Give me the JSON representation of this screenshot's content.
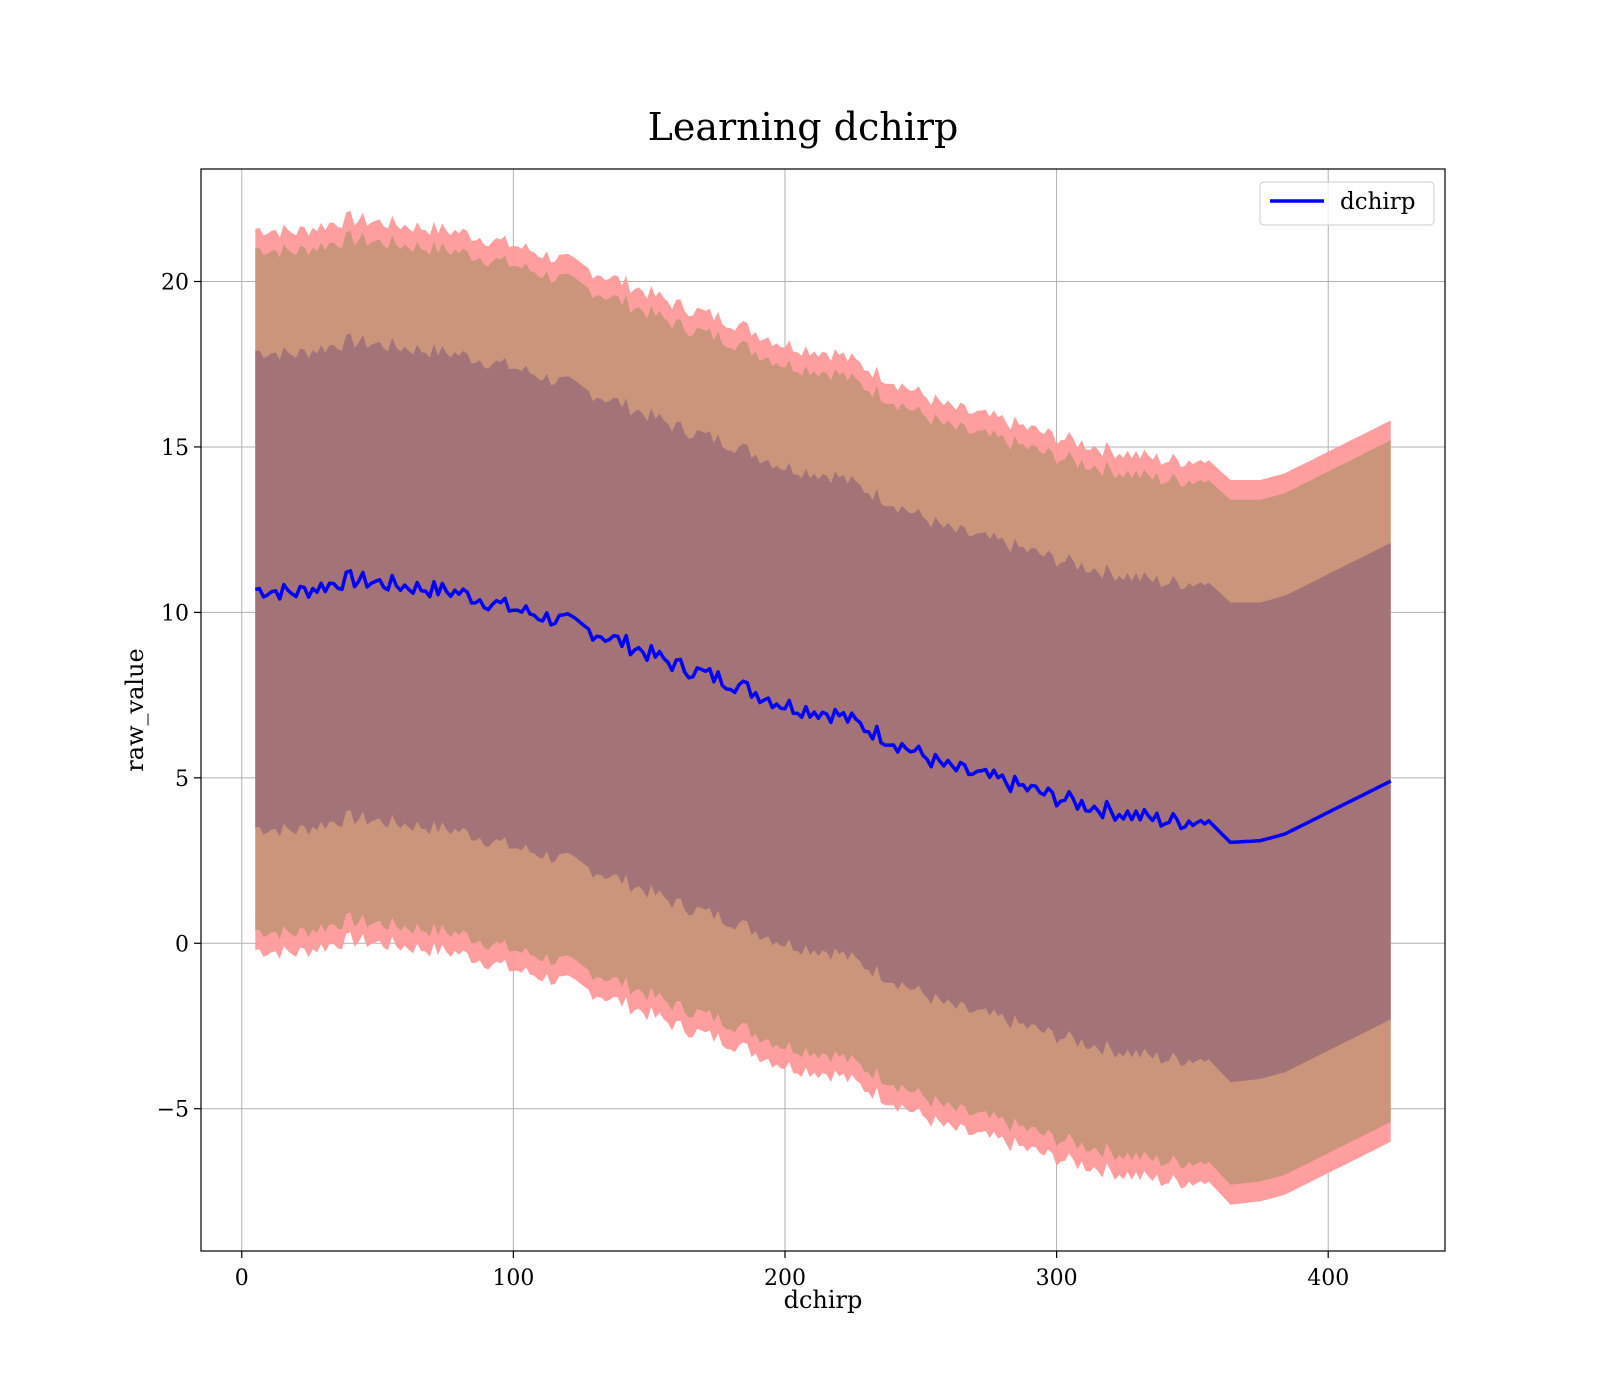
{
  "chart_data": {
    "type": "line",
    "title": "Learning dchirp",
    "xlabel": "dchirp",
    "ylabel": "raw_value",
    "xlim": [
      -15,
      443
    ],
    "ylim": [
      -9.3,
      23.4
    ],
    "xticks": [
      0,
      100,
      200,
      300,
      400
    ],
    "yticks": [
      -5,
      0,
      5,
      10,
      15,
      20
    ],
    "xtick_labels": [
      "0",
      "100",
      "200",
      "300",
      "400"
    ],
    "ytick_labels": [
      "−5",
      "0",
      "5",
      "10",
      "15",
      "20"
    ],
    "grid": true,
    "legend": {
      "position": "top-right",
      "entries": [
        "dchirp"
      ]
    },
    "colors": {
      "line": "#0000ff",
      "band3": "#ff9999",
      "band2": "#c79579",
      "band1": "#a07178",
      "grid": "#b0b0b0"
    },
    "series": [
      {
        "name": "dchirp",
        "x": [
          5,
          20,
          40,
          60,
          80,
          100,
          120,
          140,
          160,
          180,
          200,
          220,
          240,
          260,
          280,
          300,
          320,
          340,
          356,
          364,
          375,
          384,
          423
        ],
        "y": [
          10.7,
          10.6,
          11.0,
          10.8,
          10.6,
          10.1,
          9.7,
          9.1,
          8.4,
          7.9,
          7.2,
          6.9,
          6.1,
          5.3,
          4.9,
          4.4,
          4.0,
          3.7,
          3.7,
          3.05,
          3.1,
          3.3,
          4.9
        ],
        "bands": [
          {
            "level": 1,
            "upper": [
              17.9,
              17.8,
              18.2,
              18.0,
              17.8,
              17.4,
              16.9,
              16.3,
              15.6,
              15.1,
              14.4,
              14.1,
              13.3,
              12.5,
              12.1,
              11.6,
              11.2,
              10.9,
              10.9,
              10.3,
              10.3,
              10.5,
              12.1
            ],
            "lower": [
              3.5,
              3.4,
              3.8,
              3.6,
              3.4,
              2.9,
              2.5,
              1.9,
              1.2,
              0.7,
              0.0,
              -0.3,
              -1.1,
              -1.9,
              -2.3,
              -2.8,
              -3.2,
              -3.5,
              -3.5,
              -4.2,
              -4.1,
              -3.9,
              -2.3
            ]
          },
          {
            "level": 2,
            "upper": [
              21.0,
              20.9,
              21.3,
              21.1,
              20.9,
              20.5,
              20.0,
              19.4,
              18.7,
              18.2,
              17.5,
              17.2,
              16.4,
              15.6,
              15.2,
              14.7,
              14.3,
              14.0,
              14.0,
              13.4,
              13.4,
              13.6,
              15.2
            ],
            "lower": [
              0.4,
              0.3,
              0.7,
              0.5,
              0.3,
              -0.2,
              -0.6,
              -1.2,
              -1.9,
              -2.4,
              -3.1,
              -3.4,
              -4.2,
              -5.0,
              -5.4,
              -5.9,
              -6.3,
              -6.6,
              -6.6,
              -7.3,
              -7.2,
              -7.0,
              -5.4
            ]
          },
          {
            "level": 3,
            "upper": [
              21.6,
              21.5,
              21.9,
              21.7,
              21.5,
              21.1,
              20.6,
              20.0,
              19.3,
              18.8,
              18.1,
              17.8,
              17.0,
              16.2,
              15.8,
              15.3,
              14.9,
              14.6,
              14.6,
              14.0,
              14.0,
              14.2,
              15.8
            ],
            "lower": [
              -0.2,
              -0.3,
              0.1,
              -0.1,
              -0.3,
              -0.8,
              -1.2,
              -1.8,
              -2.5,
              -3.0,
              -3.7,
              -4.0,
              -4.8,
              -5.6,
              -6.0,
              -6.5,
              -6.9,
              -7.2,
              -7.2,
              -7.9,
              -7.8,
              -7.6,
              -6.0
            ]
          }
        ]
      }
    ]
  }
}
